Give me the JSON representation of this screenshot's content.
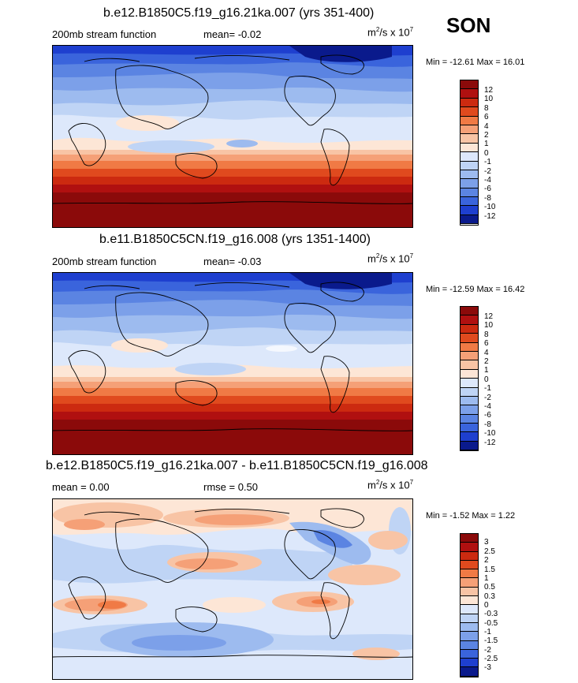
{
  "season": "SON",
  "units_prefix": "m",
  "units_mid": "/s x 10",
  "units_sup2": "2",
  "units_sup7": "7",
  "panels": [
    {
      "title": "b.e12.B1850C5.f19_g16.21ka.007 (yrs 351-400)",
      "left_label": "200mb stream function",
      "mid_label": "mean=  -0.02",
      "minmax": "Min = -12.61  Max =  16.01",
      "colorbar_labels": [
        "12",
        "10",
        "8",
        "6",
        "4",
        "2",
        "1",
        "0",
        "-1",
        "-2",
        "-4",
        "-6",
        "-8",
        "-10",
        "-12"
      ]
    },
    {
      "title": "b.e11.B1850C5CN.f19_g16.008 (yrs 1351-1400)",
      "left_label": "200mb stream function",
      "mid_label": "mean=  -0.03",
      "minmax": "Min = -12.59  Max =  16.42",
      "colorbar_labels": [
        "12",
        "10",
        "8",
        "6",
        "4",
        "2",
        "1",
        "0",
        "-1",
        "-2",
        "-4",
        "-6",
        "-8",
        "-10",
        "-12"
      ]
    },
    {
      "title": "b.e12.B1850C5.f19_g16.21ka.007 - b.e11.B1850C5CN.f19_g16.008",
      "left_label": "mean =   0.00",
      "mid_label": "rmse =   0.50",
      "minmax": "Min =  -1.52  Max =    1.22",
      "colorbar_labels": [
        "3",
        "2.5",
        "2",
        "1.5",
        "1",
        "0.5",
        "0.3",
        "0",
        "-0.3",
        "-0.5",
        "-1",
        "-1.5",
        "-2",
        "-2.5",
        "-3"
      ]
    }
  ],
  "colors": {
    "bar16": [
      "#8b0a0a",
      "#b01010",
      "#cc2a10",
      "#e04a1e",
      "#f07a45",
      "#f5a077",
      "#f8c4a5",
      "#fde6d6",
      "#dde8fb",
      "#bfd4f5",
      "#9dbbef",
      "#7ca0e9",
      "#5b84e2",
      "#3a64dc",
      "#1e3fcf",
      "#0a1a8c"
    ]
  }
}
